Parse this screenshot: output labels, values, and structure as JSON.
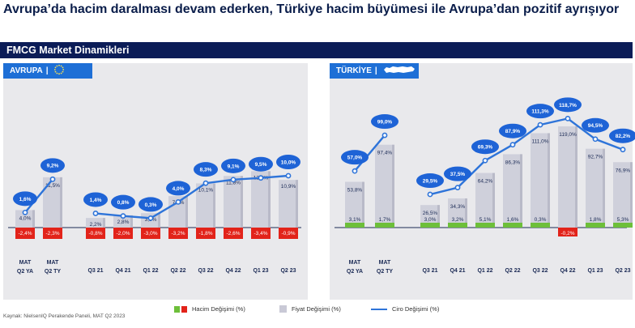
{
  "title": "Avrupa’da hacim daralması devam ederken, Türkiye hacim büyümesi ile Avrupa’dan pozitif ayrışıyor",
  "banner": "FMCG Market Dinamikleri",
  "source": "Kaynak: NielsenIQ Perakende Paneli, MAT Q2 2023",
  "legend": {
    "volume": "Hacim Değişimi (%)",
    "price": "Fiyat Değişimi (%)",
    "value": "Ciro Değişimi (%)"
  },
  "colors": {
    "bar": "#cfd0db",
    "line": "#2e74d9",
    "bubble": "#1e63d6",
    "volume_pos": "#6dbf3a",
    "volume_neg": "#e2231a",
    "banner": "#0b1c57",
    "tab": "#1e6fd6"
  },
  "regions": {
    "europe": {
      "label": "AVRUPA",
      "icon": "eu-flag-icon"
    },
    "turkey": {
      "label": "TÜRKİYE",
      "icon": "turkey-map-icon"
    }
  },
  "chart_data": [
    {
      "type": "bar",
      "region": "AVRUPA",
      "mat": {
        "categories": [
          "MAT Q2 YA",
          "MAT Q2 TY"
        ],
        "volume": [
          -2.4,
          -2.3
        ],
        "price": [
          4.0,
          11.5
        ],
        "value": [
          1.6,
          9.2
        ],
        "volume_labels": [
          "-2,4%",
          "-2,3%"
        ],
        "price_labels": [
          "4,0%",
          "11,5%"
        ],
        "value_labels": [
          "1,6%",
          "9,2%"
        ]
      },
      "quarterly": {
        "categories": [
          "Q3 21",
          "Q4 21",
          "Q1 22",
          "Q2 22",
          "Q3 22",
          "Q4 22",
          "Q1 23",
          "Q2 23"
        ],
        "volume": [
          -0.8,
          -2.0,
          -3.0,
          -3.2,
          -1.8,
          -2.6,
          -3.4,
          -0.9
        ],
        "price": [
          2.2,
          2.8,
          3.3,
          7.2,
          10.1,
          11.8,
          12.9,
          10.9
        ],
        "value": [
          1.4,
          0.8,
          0.3,
          4.0,
          8.3,
          9.1,
          9.5,
          10.0
        ],
        "volume_labels": [
          "-0,8%",
          "-2,0%",
          "-3,0%",
          "-3,2%",
          "-1,8%",
          "-2,6%",
          "-3,4%",
          "-0,9%"
        ],
        "price_labels": [
          "2,2%",
          "2,8%",
          "3,3%",
          "7,2%",
          "10,1%",
          "11,8%",
          "12,9%",
          "10,9%"
        ],
        "value_labels": [
          "1,4%",
          "0,8%",
          "0,3%",
          "4,0%",
          "8,3%",
          "9,1%",
          "9,5%",
          "10,0%"
        ]
      }
    },
    {
      "type": "bar",
      "region": "TÜRKİYE",
      "mat": {
        "categories": [
          "MAT Q2 YA",
          "MAT Q2 TY"
        ],
        "volume": [
          3.1,
          1.7
        ],
        "price": [
          53.8,
          97.4
        ],
        "value": [
          57.0,
          99.0
        ],
        "volume_labels": [
          "3,1%",
          "1,7%"
        ],
        "price_labels": [
          "53,8%",
          "97,4%"
        ],
        "value_labels": [
          "57,0%",
          "99,0%"
        ]
      },
      "quarterly": {
        "categories": [
          "Q3 21",
          "Q4 21",
          "Q1 22",
          "Q2 22",
          "Q3 22",
          "Q4 22",
          "Q1 23",
          "Q2 23"
        ],
        "volume": [
          3.0,
          3.2,
          5.1,
          1.6,
          0.3,
          -0.2,
          1.8,
          5.3
        ],
        "price": [
          26.5,
          34.3,
          64.2,
          86.3,
          111.0,
          119.0,
          92.7,
          76.9
        ],
        "value": [
          29.5,
          37.5,
          69.3,
          87.9,
          111.3,
          118.7,
          94.5,
          82.2
        ],
        "volume_labels": [
          "3,0%",
          "3,2%",
          "5,1%",
          "1,6%",
          "0,3%",
          "-0,2%",
          "1,8%",
          "5,3%"
        ],
        "price_labels": [
          "26,5%",
          "34,3%",
          "64,2%",
          "86,3%",
          "111,0%",
          "119,0%",
          "92,7%",
          "76,9%"
        ],
        "value_labels": [
          "29,5%",
          "37,5%",
          "69,3%",
          "87,9%",
          "111,3%",
          "118,7%",
          "94,5%",
          "82,2%"
        ]
      }
    }
  ]
}
